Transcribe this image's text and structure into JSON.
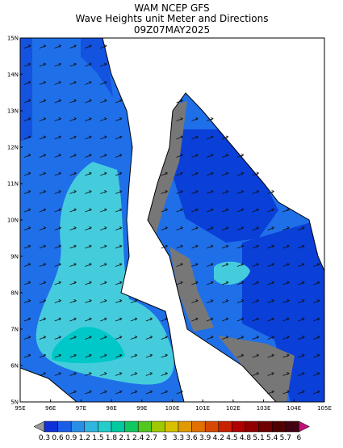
{
  "title": [
    "WAM NCEP GFS",
    "Wave Heights unit Meter and Directions",
    "09Z07MAY2025"
  ],
  "lat_labels": [
    "15N",
    "14N",
    "13N",
    "12N",
    "11N",
    "10N",
    "9N",
    "8N",
    "7N",
    "6N",
    "5N"
  ],
  "lon_labels": [
    "95E",
    "96E",
    "97E",
    "98E",
    "99E",
    "100E",
    "101E",
    "102E",
    "103E",
    "104E",
    "105E"
  ],
  "colorbar": [
    0.3,
    0.6,
    0.9,
    1.2,
    1.5,
    1.8,
    2.1,
    2.4,
    2.7,
    3,
    3.3,
    3.6,
    3.9,
    4.2,
    4.5,
    4.8,
    5.1,
    5.4,
    5.7,
    6
  ]
}
